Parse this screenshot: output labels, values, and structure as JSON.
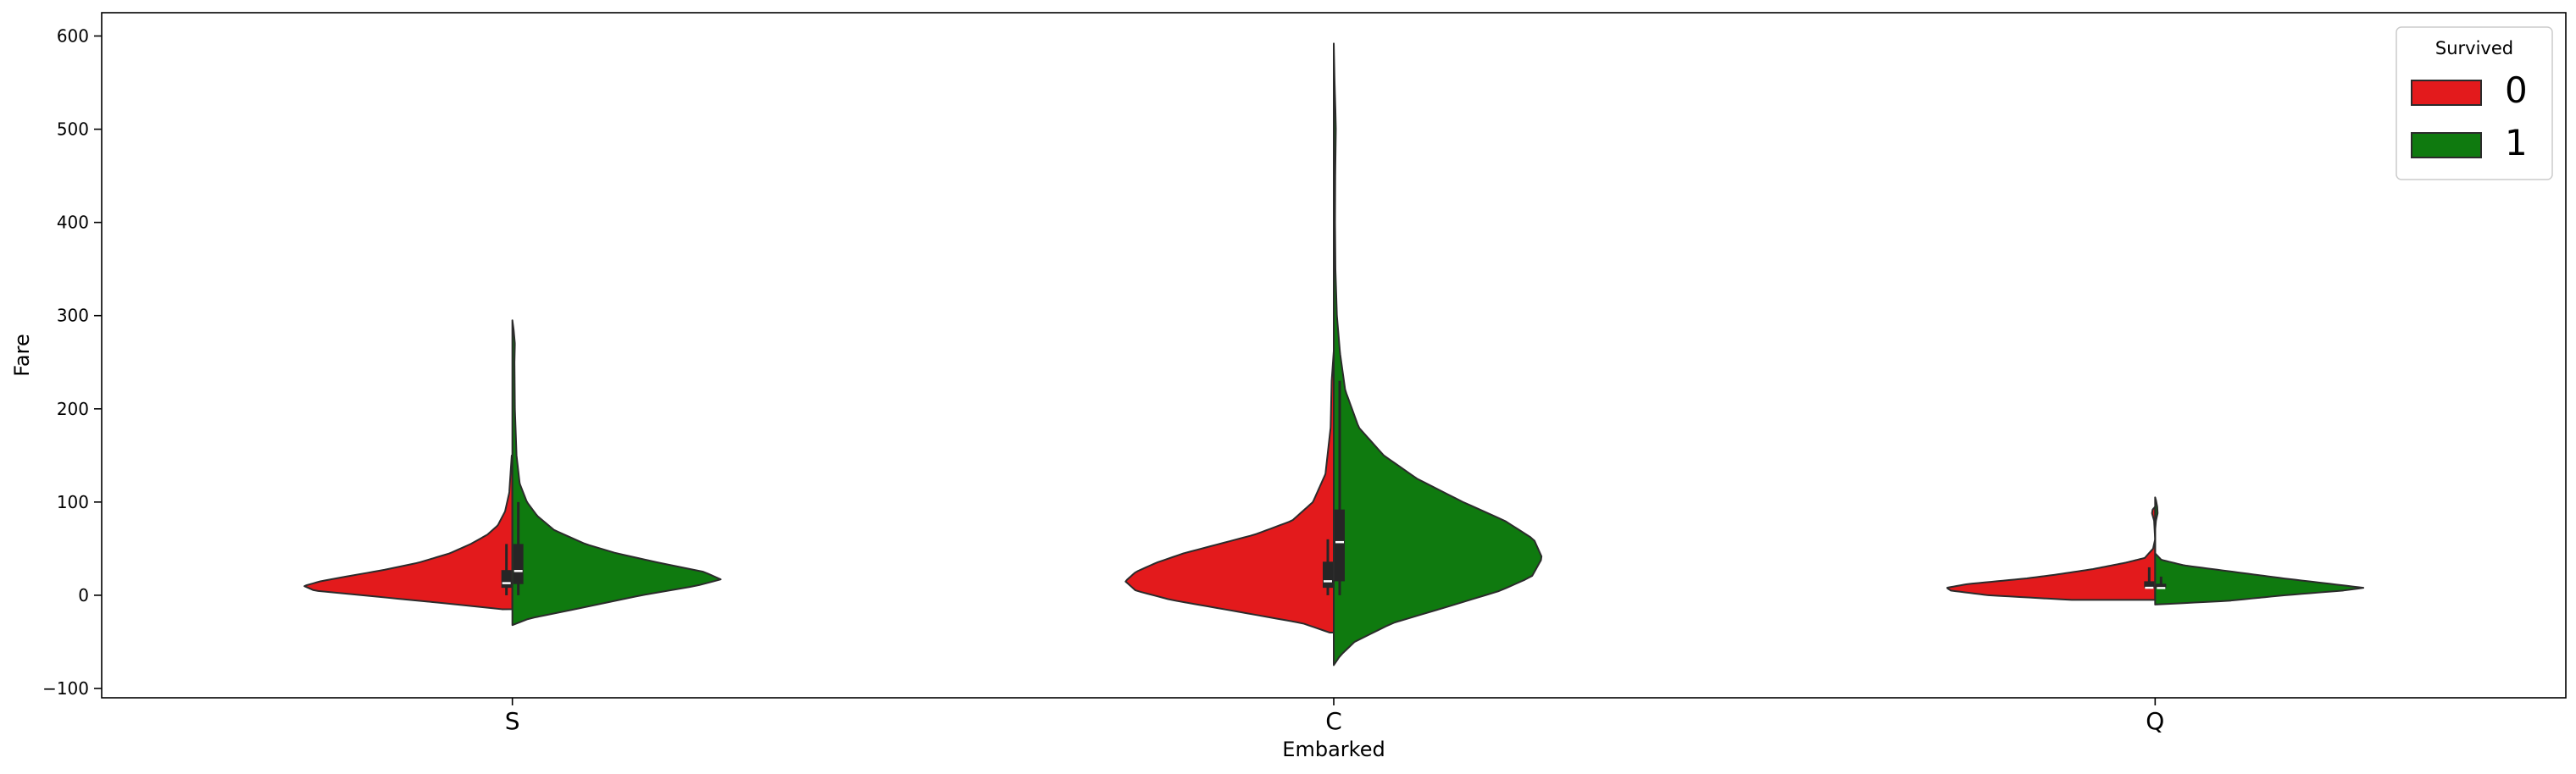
{
  "chart_data": {
    "type": "violin",
    "split": true,
    "xlabel": "Embarked",
    "ylabel": "Fare",
    "ylim": [
      -110,
      625
    ],
    "yticks": [
      -100,
      0,
      100,
      200,
      300,
      400,
      500,
      600
    ],
    "categories": [
      "S",
      "C",
      "Q"
    ],
    "legend": {
      "title": "Survived",
      "position": "top-right",
      "entries": [
        {
          "label": "0",
          "color": "#e31a1c"
        },
        {
          "label": "1",
          "color": "#0f7a0f"
        }
      ]
    },
    "series": [
      {
        "name": "0",
        "color": "#e31a1c",
        "violins": [
          {
            "category": "S",
            "range": [
              -15,
              150
            ],
            "q1": 8,
            "median": 13,
            "q3": 27,
            "whisker": [
              0,
              55
            ],
            "profile": [
              [
                -15,
                0.05
              ],
              [
                -8,
                0.35
              ],
              [
                0,
                0.72
              ],
              [
                5,
                0.95
              ],
              [
                10,
                1.0
              ],
              [
                15,
                0.92
              ],
              [
                20,
                0.8
              ],
              [
                27,
                0.62
              ],
              [
                35,
                0.45
              ],
              [
                45,
                0.3
              ],
              [
                55,
                0.2
              ],
              [
                65,
                0.12
              ],
              [
                75,
                0.07
              ],
              [
                90,
                0.035
              ],
              [
                110,
                0.015
              ],
              [
                150,
                0.003
              ]
            ]
          },
          {
            "category": "C",
            "range": [
              -40,
              262
            ],
            "q1": 8,
            "median": 15,
            "q3": 36,
            "whisker": [
              0,
              60
            ],
            "profile": [
              [
                -40,
                0.02
              ],
              [
                -30,
                0.15
              ],
              [
                -18,
                0.45
              ],
              [
                -5,
                0.78
              ],
              [
                5,
                0.95
              ],
              [
                15,
                1.0
              ],
              [
                25,
                0.95
              ],
              [
                35,
                0.85
              ],
              [
                45,
                0.72
              ],
              [
                55,
                0.55
              ],
              [
                65,
                0.38
              ],
              [
                80,
                0.2
              ],
              [
                100,
                0.1
              ],
              [
                130,
                0.04
              ],
              [
                180,
                0.015
              ],
              [
                230,
                0.01
              ],
              [
                262,
                0.0
              ]
            ]
          },
          {
            "category": "Q",
            "range": [
              -5,
              95
            ],
            "q1": 7.7,
            "median": 8,
            "q3": 15,
            "whisker": [
              6.7,
              30
            ],
            "profile": [
              [
                -5,
                0.4
              ],
              [
                0,
                0.8
              ],
              [
                5,
                0.98
              ],
              [
                8,
                1.0
              ],
              [
                12,
                0.9
              ],
              [
                18,
                0.62
              ],
              [
                22,
                0.48
              ],
              [
                28,
                0.3
              ],
              [
                35,
                0.14
              ],
              [
                40,
                0.05
              ],
              [
                50,
                0.01
              ],
              [
                60,
                0.0
              ],
              [
                80,
                0.005
              ],
              [
                88,
                0.015
              ],
              [
                92,
                0.012
              ],
              [
                95,
                0.0
              ]
            ]
          }
        ]
      },
      {
        "name": "1",
        "color": "#0f7a0f",
        "violins": [
          {
            "category": "S",
            "range": [
              -32,
              295
            ],
            "q1": 12,
            "median": 26,
            "q3": 55,
            "whisker": [
              0,
              100
            ],
            "profile": [
              [
                -32,
                0.0
              ],
              [
                -25,
                0.08
              ],
              [
                -15,
                0.3
              ],
              [
                0,
                0.62
              ],
              [
                10,
                0.88
              ],
              [
                17,
                1.0
              ],
              [
                25,
                0.92
              ],
              [
                35,
                0.7
              ],
              [
                45,
                0.5
              ],
              [
                55,
                0.35
              ],
              [
                70,
                0.2
              ],
              [
                85,
                0.12
              ],
              [
                100,
                0.07
              ],
              [
                120,
                0.035
              ],
              [
                150,
                0.02
              ],
              [
                200,
                0.012
              ],
              [
                250,
                0.01
              ],
              [
                270,
                0.012
              ],
              [
                285,
                0.006
              ],
              [
                295,
                0.0
              ]
            ]
          },
          {
            "category": "C",
            "range": [
              -75,
              592
            ],
            "q1": 15,
            "median": 57,
            "q3": 92,
            "whisker": [
              0,
              230
            ],
            "profile": [
              [
                -75,
                0.0
              ],
              [
                -65,
                0.03
              ],
              [
                -50,
                0.1
              ],
              [
                -30,
                0.28
              ],
              [
                -10,
                0.58
              ],
              [
                5,
                0.8
              ],
              [
                20,
                0.95
              ],
              [
                40,
                1.0
              ],
              [
                60,
                0.96
              ],
              [
                80,
                0.82
              ],
              [
                100,
                0.62
              ],
              [
                125,
                0.4
              ],
              [
                150,
                0.24
              ],
              [
                180,
                0.12
              ],
              [
                220,
                0.055
              ],
              [
                260,
                0.03
              ],
              [
                300,
                0.015
              ],
              [
                350,
                0.008
              ],
              [
                400,
                0.006
              ],
              [
                450,
                0.007
              ],
              [
                500,
                0.01
              ],
              [
                520,
                0.008
              ],
              [
                550,
                0.004
              ],
              [
                592,
                0.0
              ]
            ]
          },
          {
            "category": "Q",
            "range": [
              -10,
              105
            ],
            "q1": 7.7,
            "median": 7.75,
            "q3": 12.4,
            "whisker": [
              6.7,
              20
            ],
            "profile": [
              [
                -10,
                0.0
              ],
              [
                -6,
                0.35
              ],
              [
                0,
                0.62
              ],
              [
                5,
                0.9
              ],
              [
                8,
                1.0
              ],
              [
                12,
                0.85
              ],
              [
                18,
                0.62
              ],
              [
                25,
                0.38
              ],
              [
                32,
                0.14
              ],
              [
                38,
                0.03
              ],
              [
                45,
                0.0
              ],
              [
                70,
                0.0
              ],
              [
                80,
                0.004
              ],
              [
                88,
                0.012
              ],
              [
                95,
                0.01
              ],
              [
                102,
                0.004
              ],
              [
                105,
                0.0
              ]
            ]
          }
        ]
      }
    ]
  }
}
